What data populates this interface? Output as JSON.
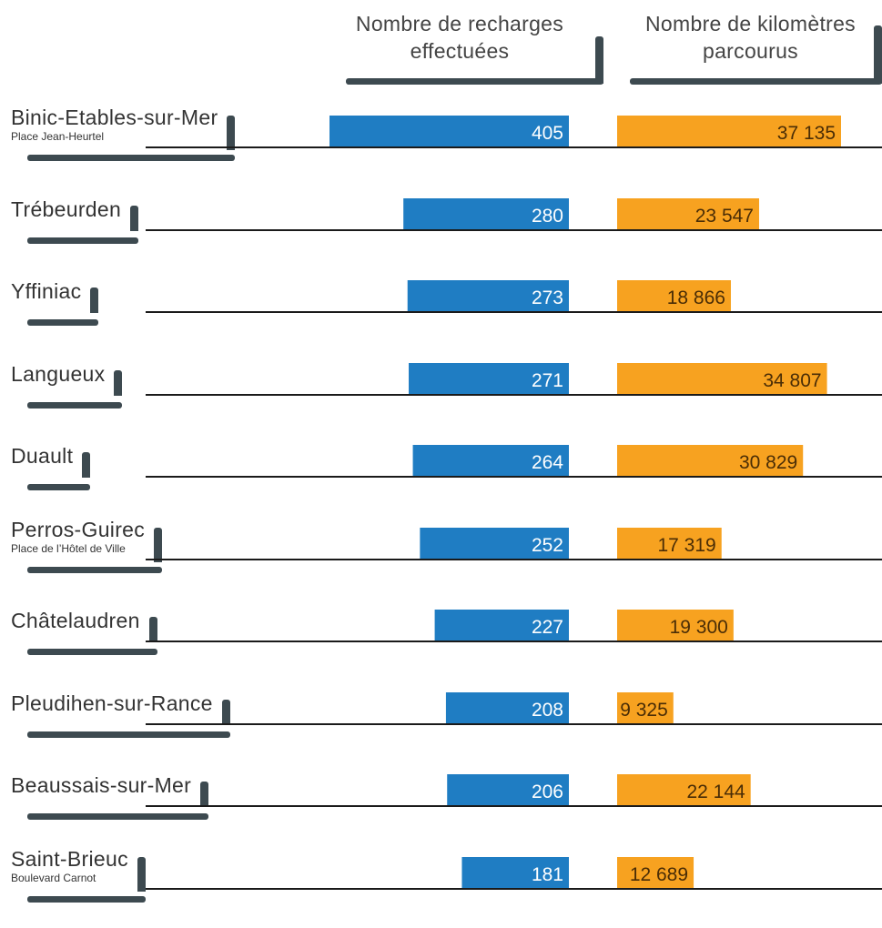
{
  "chart_data": {
    "type": "bar",
    "series": [
      {
        "name": "Nombre de recharges effectuées",
        "header_lines": [
          "Nombre de recharges",
          "effectuées"
        ],
        "color": "#1f7dc3",
        "value_labels": [
          "405",
          "280",
          "273",
          "271",
          "264",
          "252",
          "227",
          "208",
          "206",
          "181"
        ],
        "values": [
          405,
          280,
          273,
          271,
          264,
          252,
          227,
          208,
          206,
          181
        ]
      },
      {
        "name": "Nombre de kilomètres parcourus",
        "header_lines": [
          "Nombre de kilomètres",
          "parcourus"
        ],
        "color": "#f7a220",
        "value_labels": [
          "37 135",
          "23 547",
          "18 866",
          "34 807",
          "30 829",
          "17 319",
          "19 300",
          "9 325",
          "22 144",
          "12 689"
        ],
        "values": [
          37135,
          23547,
          18866,
          34807,
          30829,
          17319,
          19300,
          9325,
          22144,
          12689
        ]
      }
    ],
    "categories": [
      {
        "name": "Binic-Etables-sur-Mer",
        "sub": "Place Jean-Heurtel"
      },
      {
        "name": "Trébeurden",
        "sub": ""
      },
      {
        "name": "Yffiniac",
        "sub": ""
      },
      {
        "name": "Langueux",
        "sub": ""
      },
      {
        "name": "Duault",
        "sub": ""
      },
      {
        "name": "Perros-Guirec",
        "sub": "Place de l’Hôtel de Ville"
      },
      {
        "name": "Châtelaudren",
        "sub": ""
      },
      {
        "name": "Pleudihen-sur-Rance",
        "sub": ""
      },
      {
        "name": "Beaussais-sur-Mer",
        "sub": ""
      },
      {
        "name": "Saint-Brieuc",
        "sub": "Boulevard Carnot"
      }
    ],
    "grid": false,
    "legend": "column headers at top"
  }
}
